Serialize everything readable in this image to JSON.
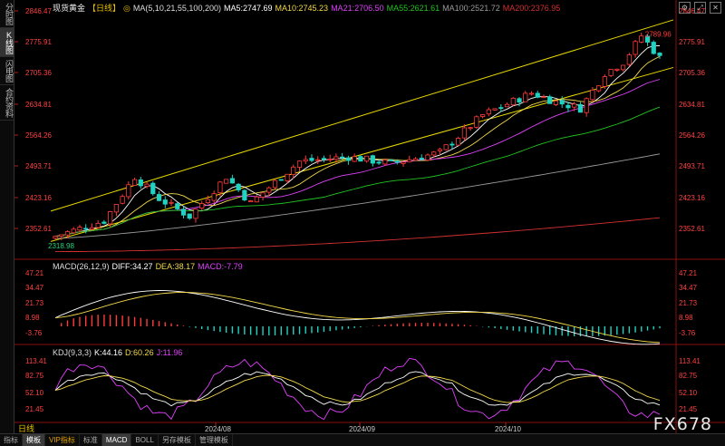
{
  "sidebar": {
    "items": [
      {
        "label": "分时图",
        "active": false
      },
      {
        "label": "K线图",
        "active": true
      },
      {
        "label": "闪电图",
        "active": false
      },
      {
        "label": "合约资料",
        "active": false
      }
    ]
  },
  "main_header": {
    "symbol": "现货黄金",
    "period": "【日线】",
    "ma_params": "MA(5,10,21,55,100,200)",
    "ma5": "MA5:2747.69",
    "ma10": "MA10:2745.23",
    "ma21": "MA21:2706.50",
    "ma55": "MA55:2621.61",
    "ma100": "MA100:2521.72",
    "ma200": "MA200:2376.95"
  },
  "macd_header": {
    "params": "MACD(26,12,9)",
    "diff": "DIFF:34.27",
    "dea": "DEA:38.17",
    "macd": "MACD:-7.79"
  },
  "kdj_header": {
    "params": "KDJ(9,3,3)",
    "k": "K:44.16",
    "d": "D:60.26",
    "j": "J:11.96"
  },
  "price_axis": [
    "2846.47",
    "2775.91",
    "2705.36",
    "2634.81",
    "2564.26",
    "2493.71",
    "2423.16",
    "2352.61"
  ],
  "macd_axis": [
    "47.21",
    "34.47",
    "21.73",
    "8.98",
    "-3.76"
  ],
  "kdj_axis": [
    "113.41",
    "82.75",
    "52.10",
    "21.45"
  ],
  "date_labels": [
    "2024/08",
    "2024/09",
    "2024/10"
  ],
  "annotations": {
    "high": "2789.96",
    "low": "2318.98"
  },
  "period_label": "日线",
  "bottom_tabs": [
    {
      "label": "指标",
      "active": false,
      "vip": false
    },
    {
      "label": "模板",
      "active": true,
      "vip": false
    },
    {
      "label": "VIP指标",
      "active": false,
      "vip": true
    },
    {
      "label": "标准",
      "active": false,
      "vip": false
    },
    {
      "label": "MACD",
      "active": true,
      "vip": false
    },
    {
      "label": "BOLL",
      "active": false,
      "vip": false
    },
    {
      "label": "另存模板",
      "active": false,
      "vip": false
    },
    {
      "label": "管理模板",
      "active": false,
      "vip": false
    }
  ],
  "watermark": "FX678",
  "icons": [
    "settings-icon",
    "expand-icon",
    "close-icon"
  ],
  "colors": {
    "up": "#ff3b3b",
    "down": "#20d2c2",
    "ma5": "#ffffff",
    "ma10": "#f2d84a",
    "ma21": "#e040fb",
    "ma55": "#21c421",
    "ma100": "#9a9a9a",
    "ma200": "#d23030",
    "channel": "#e8d800",
    "axis_text": "#ff4040"
  }
}
